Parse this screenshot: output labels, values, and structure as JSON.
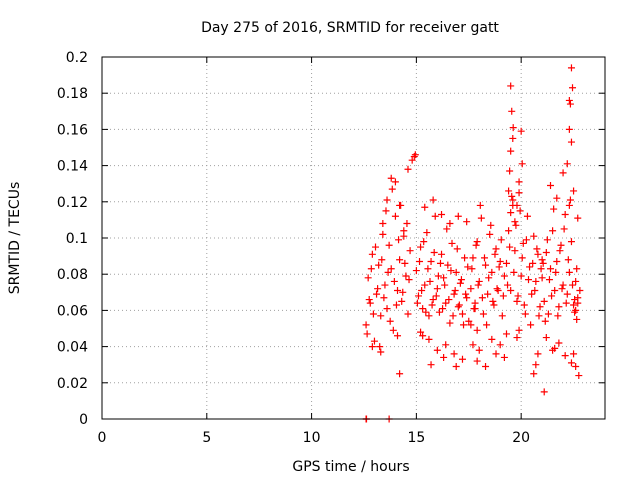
{
  "chart_data": {
    "type": "scatter",
    "title": "Day 275 of 2016, SRMTID for receiver gatt",
    "xlabel": "GPS time / hours",
    "ylabel": "SRMTID / TECUs",
    "xlim": [
      0,
      24
    ],
    "ylim": [
      0,
      0.2
    ],
    "xticks": [
      0,
      5,
      10,
      15,
      20
    ],
    "xtick_labels": [
      "0",
      "5",
      "10",
      "15",
      "20"
    ],
    "yticks": [
      0,
      0.02,
      0.04,
      0.06,
      0.08,
      0.1,
      0.12,
      0.14,
      0.16,
      0.18,
      0.2
    ],
    "ytick_labels": [
      "0",
      "0.02",
      "0.04",
      "0.06",
      "0.08",
      "0.1",
      "0.12",
      "0.14",
      "0.16",
      "0.18",
      "0.2"
    ],
    "grid": true,
    "legend": "none",
    "marker": "plus",
    "color": "#ff0000",
    "series": [
      {
        "x": [
          12.6,
          12.62,
          13.7,
          12.6,
          12.7,
          12.8,
          12.9,
          13.0,
          13.1,
          13.2,
          13.3,
          13.4,
          13.5,
          13.6,
          13.7,
          13.8,
          13.9,
          14.0,
          14.1,
          14.2,
          14.3,
          14.4,
          14.5,
          14.6,
          14.7,
          12.65,
          12.75,
          12.85,
          12.95,
          13.05,
          13.15,
          13.25,
          13.35,
          13.45,
          13.55,
          13.65,
          13.75,
          13.85,
          13.95,
          14.05,
          14.15,
          14.25,
          14.35,
          14.45,
          14.55,
          14.65,
          13.4,
          13.6,
          13.8,
          14.0,
          14.2,
          14.4,
          14.6,
          14.8,
          14.9,
          14.95,
          14.2,
          13.3,
          12.9,
          14.1,
          15.0,
          15.1,
          15.2,
          15.3,
          15.4,
          15.5,
          15.6,
          15.7,
          15.8,
          15.9,
          16.0,
          16.1,
          16.2,
          16.3,
          16.4,
          16.5,
          16.6,
          16.7,
          16.8,
          16.9,
          17.0,
          17.1,
          17.2,
          17.3,
          17.4,
          17.5,
          15.05,
          15.15,
          15.25,
          15.35,
          15.45,
          15.55,
          15.65,
          15.75,
          15.85,
          15.95,
          16.05,
          16.15,
          16.25,
          16.35,
          16.45,
          16.55,
          16.65,
          16.75,
          16.85,
          16.95,
          17.05,
          17.15,
          17.25,
          17.35,
          17.45,
          15.2,
          15.6,
          16.0,
          16.4,
          16.8,
          17.2,
          15.4,
          15.8,
          16.2,
          16.6,
          17.0,
          17.4,
          15.7,
          16.3,
          16.9,
          15.3,
          17.6,
          17.7,
          17.8,
          17.9,
          17.6,
          17.7,
          17.8,
          17.9,
          18.0,
          18.1,
          18.2,
          18.3,
          18.4,
          18.5,
          18.6,
          18.7,
          18.8,
          18.9,
          19.0,
          19.1,
          19.2,
          17.65,
          17.75,
          17.85,
          17.95,
          18.05,
          18.15,
          18.25,
          18.35,
          18.45,
          18.55,
          18.65,
          18.75,
          18.85,
          18.95,
          19.05,
          19.15,
          17.9,
          18.0,
          18.3,
          18.6,
          18.8,
          19.0,
          19.2,
          19.3,
          19.4,
          19.5,
          19.6,
          19.7,
          19.8,
          19.9,
          19.3,
          19.4,
          19.5,
          19.6,
          19.7,
          19.8,
          19.9,
          20.0,
          20.1,
          20.2,
          20.3,
          20.4,
          20.5,
          20.6,
          20.7,
          20.8,
          20.9,
          21.0,
          19.35,
          19.45,
          19.55,
          19.65,
          19.75,
          19.85,
          19.95,
          20.05,
          20.15,
          20.25,
          20.35,
          20.45,
          20.55,
          20.65,
          20.75,
          20.85,
          20.95,
          19.5,
          19.55,
          19.6,
          19.5,
          19.45,
          19.62,
          20.0,
          20.05,
          19.8,
          19.9,
          20.7,
          20.6,
          20.8,
          21.0,
          21.1,
          21.2,
          21.3,
          21.4,
          21.5,
          21.6,
          21.7,
          21.8,
          21.9,
          22.0,
          22.1,
          22.2,
          22.3,
          22.4,
          22.5,
          22.6,
          22.7,
          21.05,
          21.15,
          21.25,
          21.35,
          21.45,
          21.55,
          21.65,
          21.75,
          21.85,
          21.95,
          22.05,
          22.15,
          22.25,
          22.35,
          22.45,
          22.55,
          22.65,
          21.2,
          21.5,
          21.8,
          22.1,
          22.4,
          22.6,
          21.4,
          21.7,
          22.0,
          22.3,
          22.5,
          22.7,
          22.4,
          22.45,
          22.3,
          22.35,
          22.3,
          22.4,
          22.2,
          21.1,
          21.6,
          22.5,
          22.55,
          22.6,
          22.65,
          22.7,
          22.75,
          22.8
        ],
        "y": [
          0.0,
          0.0,
          0.0,
          0.052,
          0.078,
          0.064,
          0.091,
          0.043,
          0.069,
          0.085,
          0.057,
          0.102,
          0.074,
          0.061,
          0.096,
          0.083,
          0.049,
          0.112,
          0.071,
          0.088,
          0.065,
          0.104,
          0.079,
          0.058,
          0.093,
          0.047,
          0.066,
          0.083,
          0.058,
          0.095,
          0.072,
          0.04,
          0.088,
          0.067,
          0.115,
          0.081,
          0.054,
          0.127,
          0.076,
          0.063,
          0.099,
          0.118,
          0.07,
          0.086,
          0.108,
          0.077,
          0.108,
          0.121,
          0.133,
          0.131,
          0.118,
          0.101,
          0.138,
          0.143,
          0.145,
          0.146,
          0.025,
          0.037,
          0.04,
          0.046,
          0.082,
          0.068,
          0.095,
          0.061,
          0.074,
          0.103,
          0.057,
          0.087,
          0.066,
          0.112,
          0.072,
          0.059,
          0.091,
          0.078,
          0.064,
          0.085,
          0.053,
          0.097,
          0.069,
          0.081,
          0.062,
          0.075,
          0.058,
          0.089,
          0.067,
          0.054,
          0.064,
          0.087,
          0.071,
          0.098,
          0.059,
          0.083,
          0.076,
          0.063,
          0.092,
          0.068,
          0.079,
          0.086,
          0.061,
          0.074,
          0.105,
          0.066,
          0.082,
          0.057,
          0.071,
          0.094,
          0.063,
          0.077,
          0.052,
          0.069,
          0.084,
          0.048,
          0.044,
          0.038,
          0.041,
          0.036,
          0.033,
          0.117,
          0.121,
          0.113,
          0.108,
          0.112,
          0.109,
          0.03,
          0.034,
          0.029,
          0.046,
          0.052,
          0.041,
          0.061,
          0.049,
          0.072,
          0.089,
          0.064,
          0.098,
          0.076,
          0.111,
          0.058,
          0.085,
          0.069,
          0.102,
          0.081,
          0.063,
          0.094,
          0.071,
          0.087,
          0.057,
          0.079,
          0.083,
          0.061,
          0.096,
          0.074,
          0.118,
          0.067,
          0.089,
          0.052,
          0.078,
          0.107,
          0.065,
          0.091,
          0.072,
          0.084,
          0.099,
          0.068,
          0.032,
          0.038,
          0.029,
          0.044,
          0.036,
          0.041,
          0.034,
          0.047,
          0.126,
          0.114,
          0.121,
          0.109,
          0.118,
          0.125,
          0.086,
          0.104,
          0.071,
          0.118,
          0.093,
          0.065,
          0.131,
          0.079,
          0.097,
          0.058,
          0.112,
          0.084,
          0.069,
          0.101,
          0.076,
          0.091,
          0.062,
          0.088,
          0.074,
          0.095,
          0.123,
          0.081,
          0.107,
          0.068,
          0.115,
          0.089,
          0.063,
          0.099,
          0.077,
          0.052,
          0.086,
          0.071,
          0.094,
          0.057,
          0.083,
          0.184,
          0.17,
          0.155,
          0.148,
          0.137,
          0.161,
          0.159,
          0.141,
          0.045,
          0.049,
          0.03,
          0.025,
          0.036,
          0.078,
          0.065,
          0.092,
          0.058,
          0.083,
          0.104,
          0.071,
          0.087,
          0.062,
          0.096,
          0.074,
          0.113,
          0.069,
          0.081,
          0.098,
          0.063,
          0.076,
          0.067,
          0.086,
          0.054,
          0.099,
          0.077,
          0.068,
          0.116,
          0.081,
          0.057,
          0.093,
          0.072,
          0.105,
          0.064,
          0.088,
          0.121,
          0.074,
          0.059,
          0.083,
          0.045,
          0.038,
          0.042,
          0.035,
          0.031,
          0.029,
          0.129,
          0.122,
          0.136,
          0.118,
          0.126,
          0.111,
          0.194,
          0.183,
          0.176,
          0.174,
          0.16,
          0.153,
          0.141,
          0.015,
          0.039,
          0.036,
          0.066,
          0.06,
          0.055,
          0.064,
          0.024,
          0.071
        ]
      }
    ]
  }
}
